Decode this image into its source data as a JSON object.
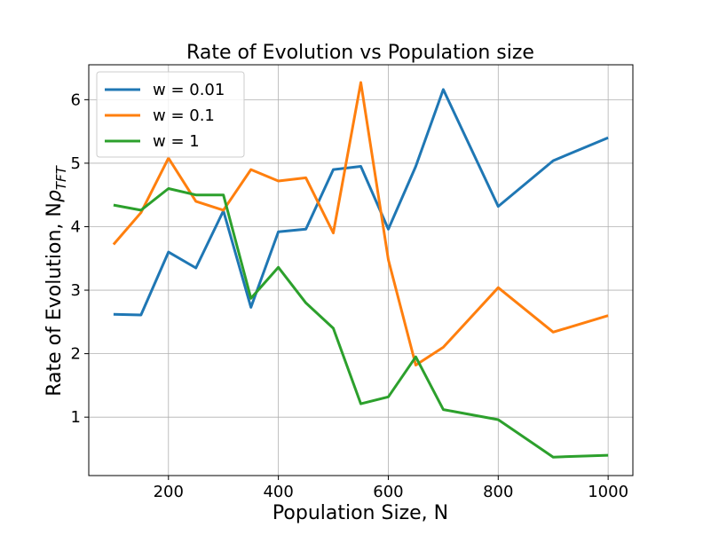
{
  "chart_data": {
    "type": "line",
    "title": "Rate of Evolution vs Population size",
    "xlabel": "Population Size, N",
    "ylabel_prefix": "Rate of Evolution, N",
    "ylabel_symbol": "ρ",
    "ylabel_subscript": "TFT",
    "xlim": [
      55,
      1045
    ],
    "ylim": [
      0.08,
      6.55
    ],
    "xticks": [
      200,
      400,
      600,
      800,
      1000
    ],
    "yticks": [
      1,
      2,
      3,
      4,
      5,
      6
    ],
    "grid": true,
    "legend_position": "top-left",
    "x": [
      100,
      150,
      200,
      250,
      300,
      350,
      400,
      450,
      500,
      550,
      600,
      650,
      700,
      800,
      900,
      1000
    ],
    "series": [
      {
        "name": "w = 0.01",
        "color": "#1f77b4",
        "values": [
          2.62,
          2.61,
          3.6,
          3.35,
          4.25,
          2.73,
          3.92,
          3.96,
          4.9,
          4.95,
          3.96,
          4.95,
          6.16,
          4.32,
          5.04,
          5.4
        ]
      },
      {
        "name": "w = 0.1",
        "color": "#ff7f0e",
        "values": [
          3.72,
          4.22,
          5.08,
          4.4,
          4.26,
          4.9,
          4.72,
          4.77,
          3.9,
          6.27,
          3.48,
          1.82,
          2.1,
          3.04,
          2.34,
          2.6
        ]
      },
      {
        "name": "w = 1",
        "color": "#2ca02c",
        "values": [
          4.34,
          4.26,
          4.6,
          4.5,
          4.5,
          2.87,
          3.36,
          2.8,
          2.4,
          1.21,
          1.32,
          1.95,
          1.12,
          0.96,
          0.37,
          0.4
        ]
      }
    ]
  }
}
